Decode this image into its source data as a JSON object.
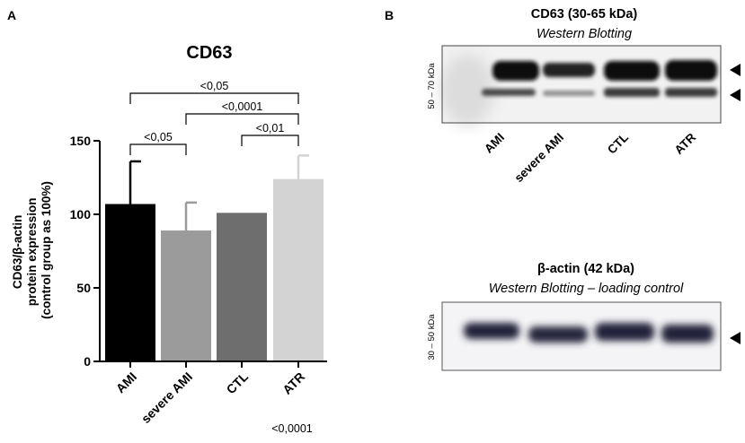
{
  "panel_a": {
    "label": "A",
    "chart_data": {
      "type": "bar",
      "title": "CD63",
      "ylabel_lines": [
        "CD63/β-actin",
        "protein expression",
        "(control group as 100%)"
      ],
      "categories": [
        "AMI",
        "severe AMI",
        "CTL",
        "ATR"
      ],
      "values": [
        107,
        89,
        101,
        124
      ],
      "error_upper": [
        136,
        108,
        101,
        140
      ],
      "bar_colors": [
        "#000000",
        "#9b9b9b",
        "#6e6e6e",
        "#d3d3d3"
      ],
      "ylim": [
        0,
        150
      ],
      "yticks": [
        0,
        50,
        100,
        150
      ],
      "grid": false,
      "comparisons": [
        {
          "from": 0,
          "to": 1,
          "label": "<0,05"
        },
        {
          "from": 2,
          "to": 3,
          "label": "<0,01"
        },
        {
          "from": 1,
          "to": 3,
          "label": "<0,0001"
        },
        {
          "from": 0,
          "to": 3,
          "label": "<0,05"
        }
      ],
      "footnote": "<0,0001"
    }
  },
  "panel_b": {
    "label": "B",
    "cd63_blot": {
      "title": "CD63 (30-65 kDa)",
      "subtitle": "Western Blotting",
      "size_label": "50 – 70 kDa",
      "lanes": [
        "AMI",
        "severe AMI",
        "CTL",
        "ATR"
      ]
    },
    "actin_blot": {
      "title": "β-actin (42 kDa)",
      "subtitle": "Western Blotting – loading control",
      "size_label": "30 – 50 kDa"
    }
  }
}
